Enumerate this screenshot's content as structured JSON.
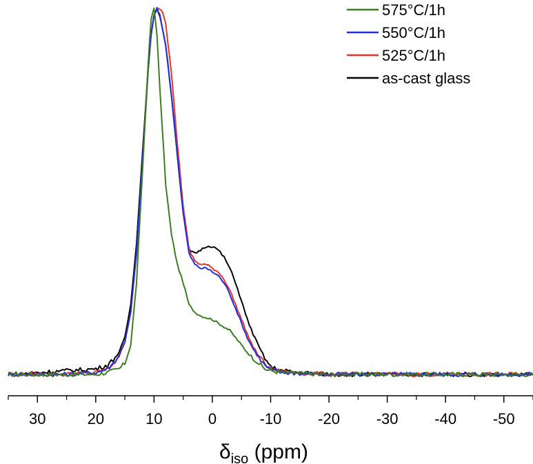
{
  "chart_data": {
    "type": "line",
    "title": "",
    "xlabel": {
      "main": "δ",
      "subscript": "iso",
      "suffix": " (ppm)"
    },
    "ylabel": "",
    "x_reversed": true,
    "xlim": [
      35,
      -55
    ],
    "ylim": [
      -0.02,
      1.0
    ],
    "xticks": [
      30,
      20,
      10,
      0,
      -10,
      -20,
      -30,
      -40,
      -50
    ],
    "xtick_labels": [
      "30",
      "20",
      "10",
      "0",
      "-10",
      "-20",
      "-30",
      "-40",
      "-50"
    ],
    "minor_xticks": [
      35,
      25,
      15,
      5,
      -5,
      -15,
      -25,
      -35,
      -45,
      -55
    ],
    "show_yaxis": false,
    "grid": false,
    "legend_position": "top-right",
    "series": [
      {
        "name": "575°C/1h",
        "color": "#3a7d22",
        "x": [
          35,
          30,
          25,
          20,
          18,
          16,
          15,
          14,
          13,
          12,
          11,
          10.5,
          10,
          9.5,
          9,
          8,
          7,
          6,
          5,
          4,
          3,
          2,
          1,
          0,
          -1,
          -2,
          -3,
          -4,
          -5,
          -6,
          -7,
          -8,
          -9,
          -10,
          -12,
          -15,
          -20,
          -30,
          -40,
          -50,
          -55
        ],
        "y": [
          0.0,
          0.0,
          0.0,
          0.0,
          0.005,
          0.015,
          0.03,
          0.08,
          0.25,
          0.55,
          0.85,
          0.97,
          1.0,
          0.93,
          0.78,
          0.52,
          0.38,
          0.3,
          0.25,
          0.19,
          0.17,
          0.16,
          0.155,
          0.15,
          0.14,
          0.13,
          0.12,
          0.1,
          0.08,
          0.06,
          0.045,
          0.03,
          0.015,
          0.01,
          0.005,
          0.003,
          0.0,
          0.0,
          0.0,
          0.0,
          0.0
        ]
      },
      {
        "name": "550°C/1h",
        "color": "#1f2fe0",
        "x": [
          35,
          30,
          25,
          20,
          18,
          17,
          16,
          15,
          14,
          13,
          12,
          11,
          10.5,
          10,
          9.5,
          9,
          8,
          7,
          6,
          5,
          4,
          3,
          2,
          1,
          0,
          -1,
          -2,
          -3,
          -4,
          -5,
          -6,
          -7,
          -8,
          -9,
          -10,
          -12,
          -15,
          -20,
          -30,
          -40,
          -50,
          -55
        ],
        "y": [
          0.0,
          0.0,
          0.0,
          0.005,
          0.015,
          0.03,
          0.05,
          0.09,
          0.17,
          0.33,
          0.58,
          0.83,
          0.93,
          0.98,
          1.0,
          0.98,
          0.9,
          0.76,
          0.6,
          0.44,
          0.33,
          0.3,
          0.29,
          0.29,
          0.28,
          0.27,
          0.25,
          0.22,
          0.18,
          0.14,
          0.1,
          0.07,
          0.045,
          0.025,
          0.012,
          0.005,
          0.003,
          0.0,
          0.0,
          0.0,
          0.0,
          0.0
        ]
      },
      {
        "name": "525°C/1h",
        "color": "#e8332a",
        "x": [
          35,
          30,
          25,
          20,
          18,
          17,
          16,
          15,
          14,
          13,
          12,
          11,
          10.5,
          10,
          9.5,
          9,
          8.5,
          8,
          7,
          6,
          5,
          4,
          3,
          2,
          1,
          0,
          -1,
          -2,
          -3,
          -4,
          -5,
          -6,
          -7,
          -8,
          -9,
          -10,
          -12,
          -15,
          -20,
          -30,
          -40,
          -50,
          -55
        ],
        "y": [
          0.0,
          0.0,
          0.0,
          0.005,
          0.015,
          0.03,
          0.05,
          0.09,
          0.17,
          0.33,
          0.58,
          0.83,
          0.93,
          0.98,
          1.0,
          1.0,
          0.99,
          0.96,
          0.82,
          0.63,
          0.46,
          0.34,
          0.31,
          0.3,
          0.3,
          0.29,
          0.28,
          0.26,
          0.23,
          0.19,
          0.15,
          0.11,
          0.075,
          0.05,
          0.03,
          0.015,
          0.007,
          0.004,
          0.0,
          0.0,
          0.0,
          0.0,
          0.0
        ]
      },
      {
        "name": "as-cast glass",
        "color": "#000000",
        "x": [
          35,
          30,
          25,
          20,
          18,
          17,
          16,
          15,
          14,
          13,
          12,
          11,
          10.5,
          10,
          9.5,
          9,
          8,
          7,
          6,
          5,
          4,
          3,
          2,
          1,
          0,
          -1,
          -2,
          -3,
          -4,
          -5,
          -6,
          -7,
          -8,
          -9,
          -10,
          -12,
          -15,
          -20,
          -30,
          -40,
          -50,
          -55
        ],
        "y": [
          0.0,
          0.005,
          0.01,
          0.015,
          0.025,
          0.04,
          0.06,
          0.1,
          0.19,
          0.36,
          0.6,
          0.84,
          0.93,
          0.98,
          1.0,
          0.98,
          0.9,
          0.76,
          0.6,
          0.44,
          0.34,
          0.33,
          0.34,
          0.35,
          0.35,
          0.34,
          0.32,
          0.29,
          0.25,
          0.2,
          0.15,
          0.11,
          0.075,
          0.045,
          0.02,
          0.01,
          0.005,
          0.0,
          0.0,
          0.0,
          0.0,
          0.0
        ]
      }
    ]
  }
}
